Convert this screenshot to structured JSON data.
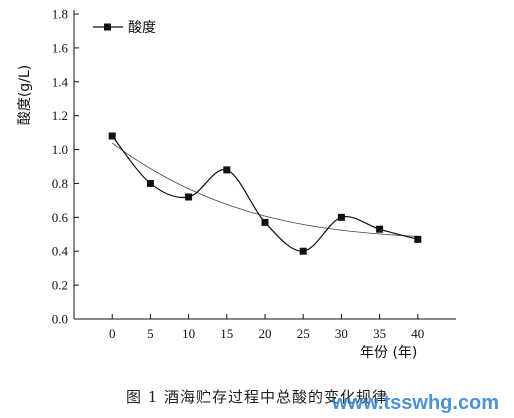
{
  "chart_data": {
    "type": "line",
    "x": [
      0,
      5,
      10,
      15,
      20,
      25,
      30,
      35,
      40
    ],
    "x_ticks": [
      "0",
      "5",
      "10",
      "15",
      "20",
      "25",
      "30",
      "35",
      "40"
    ],
    "y_ticks": [
      "0.0",
      "0.2",
      "0.4",
      "0.6",
      "0.8",
      "1.0",
      "1.2",
      "1.4",
      "1.6",
      "1.8"
    ],
    "xlabel": "年份 (年)",
    "ylabel": "酸度(g/L)",
    "ylim": [
      0,
      1.8
    ],
    "series": [
      {
        "name": "酸度",
        "values": [
          1.08,
          0.8,
          0.72,
          0.88,
          0.57,
          0.4,
          0.6,
          0.53,
          0.47
        ],
        "marker": "square",
        "color": "#111111"
      }
    ],
    "legend": {
      "placement": "top-left"
    }
  },
  "caption": "图 1   酒海贮存过程中总酸的变化规律",
  "watermark": "www.tsswhg.com"
}
